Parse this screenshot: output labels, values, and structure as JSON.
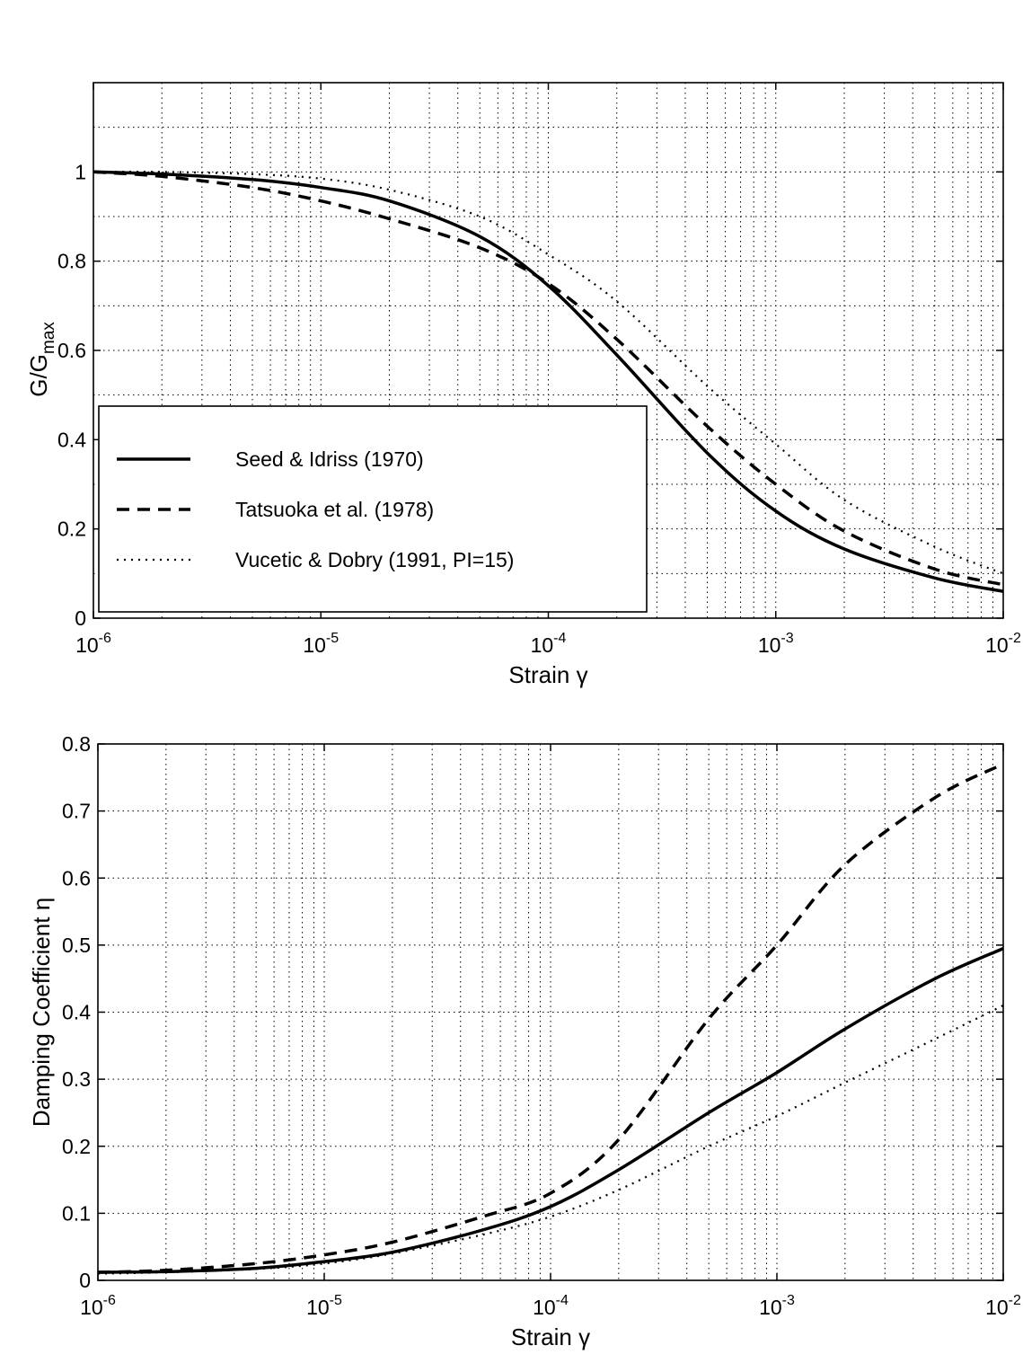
{
  "chart_data": [
    {
      "type": "line",
      "xscale": "log",
      "xlim": [
        1e-06,
        0.01
      ],
      "ylim": [
        0,
        1.2
      ],
      "xlabel": "Strain γ",
      "ylabel": "G/G",
      "ylabel_sub": "max",
      "xticks": [
        {
          "base": "10",
          "exp": "-6"
        },
        {
          "base": "10",
          "exp": "-5"
        },
        {
          "base": "10",
          "exp": "-4"
        },
        {
          "base": "10",
          "exp": "-3"
        },
        {
          "base": "10",
          "exp": "-2"
        }
      ],
      "yticks": [
        "0",
        "0.2",
        "0.4",
        "0.6",
        "0.8",
        "1"
      ],
      "grid": true,
      "legend_position": "lower-left",
      "x": [
        1e-06,
        2e-06,
        5e-06,
        1e-05,
        2e-05,
        5e-05,
        0.0001,
        0.0002,
        0.0005,
        0.001,
        0.002,
        0.005,
        0.01
      ],
      "series": [
        {
          "name": "Seed & Idriss (1970)",
          "style": "solid",
          "values": [
            1.0,
            0.995,
            0.983,
            0.965,
            0.935,
            0.855,
            0.745,
            0.59,
            0.37,
            0.24,
            0.155,
            0.09,
            0.06
          ]
        },
        {
          "name": "Tatsuoka et al. (1978)",
          "style": "dashed",
          "values": [
            1.0,
            0.99,
            0.965,
            0.935,
            0.895,
            0.83,
            0.75,
            0.625,
            0.43,
            0.3,
            0.195,
            0.11,
            0.075
          ]
        },
        {
          "name": "Vucetic & Dobry (1991, PI=15)",
          "style": "dotted",
          "values": [
            1.0,
            1.0,
            0.995,
            0.985,
            0.96,
            0.9,
            0.815,
            0.71,
            0.52,
            0.39,
            0.265,
            0.16,
            0.1
          ]
        }
      ]
    },
    {
      "type": "line",
      "xscale": "log",
      "xlim": [
        1e-06,
        0.01
      ],
      "ylim": [
        0,
        0.8
      ],
      "xlabel": "Strain γ",
      "ylabel": "Damping Coefficient η",
      "xticks": [
        {
          "base": "10",
          "exp": "-6"
        },
        {
          "base": "10",
          "exp": "-5"
        },
        {
          "base": "10",
          "exp": "-4"
        },
        {
          "base": "10",
          "exp": "-3"
        },
        {
          "base": "10",
          "exp": "-2"
        }
      ],
      "yticks": [
        "0",
        "0.1",
        "0.2",
        "0.3",
        "0.4",
        "0.5",
        "0.6",
        "0.7",
        "0.8"
      ],
      "grid": true,
      "x": [
        1e-06,
        2e-06,
        5e-06,
        1e-05,
        2e-05,
        5e-05,
        0.0001,
        0.0002,
        0.0005,
        0.001,
        0.002,
        0.005,
        0.01
      ],
      "series": [
        {
          "style": "solid",
          "values": [
            0.012,
            0.013,
            0.018,
            0.028,
            0.042,
            0.075,
            0.11,
            0.165,
            0.25,
            0.31,
            0.375,
            0.45,
            0.495
          ]
        },
        {
          "style": "dashed",
          "values": [
            0.012,
            0.015,
            0.025,
            0.038,
            0.057,
            0.095,
            0.13,
            0.21,
            0.39,
            0.5,
            0.62,
            0.72,
            0.77
          ]
        },
        {
          "style": "dotted",
          "values": [
            0.01,
            0.012,
            0.017,
            0.025,
            0.04,
            0.068,
            0.095,
            0.135,
            0.2,
            0.245,
            0.295,
            0.36,
            0.41
          ]
        }
      ]
    }
  ]
}
